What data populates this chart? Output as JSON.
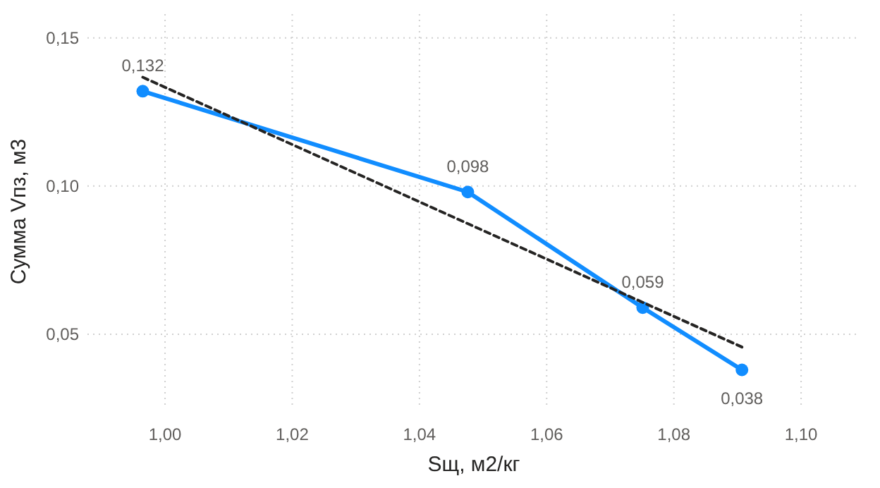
{
  "chart_data": {
    "type": "line",
    "xlabel": "Sщ, м2/кг",
    "ylabel": "Сумма Vпз, м3",
    "x": [
      0.9965,
      1.0476,
      1.0751,
      1.0907
    ],
    "series": [
      {
        "color": "#118dff",
        "values": [
          0.132,
          0.098,
          0.059,
          0.038
        ],
        "value_labels": [
          "0,132",
          "0,098",
          "0,059",
          "0,038"
        ],
        "marker": "circle",
        "line_style": "solid"
      },
      {
        "type": "line",
        "x": [
          0.9965,
          1.0907
        ],
        "values": [
          0.1367,
          0.0457
        ],
        "color": "#252423",
        "marker": "none",
        "line_style": "dashed"
      }
    ],
    "xlim": [
      0.9878,
      1.1093
    ],
    "ylim": [
      0.0248,
      0.158
    ],
    "xticks": [
      {
        "value": 1.0,
        "label": "1,00"
      },
      {
        "value": 1.02,
        "label": "1,02"
      },
      {
        "value": 1.04,
        "label": "1,04"
      },
      {
        "value": 1.06,
        "label": "1,06"
      },
      {
        "value": 1.08,
        "label": "1,08"
      },
      {
        "value": 1.1,
        "label": "1,10"
      }
    ],
    "yticks": [
      {
        "value": 0.05,
        "label": "0,05"
      },
      {
        "value": 0.1,
        "label": "0,10"
      },
      {
        "value": 0.15,
        "label": "0,15"
      }
    ],
    "grid": true
  }
}
